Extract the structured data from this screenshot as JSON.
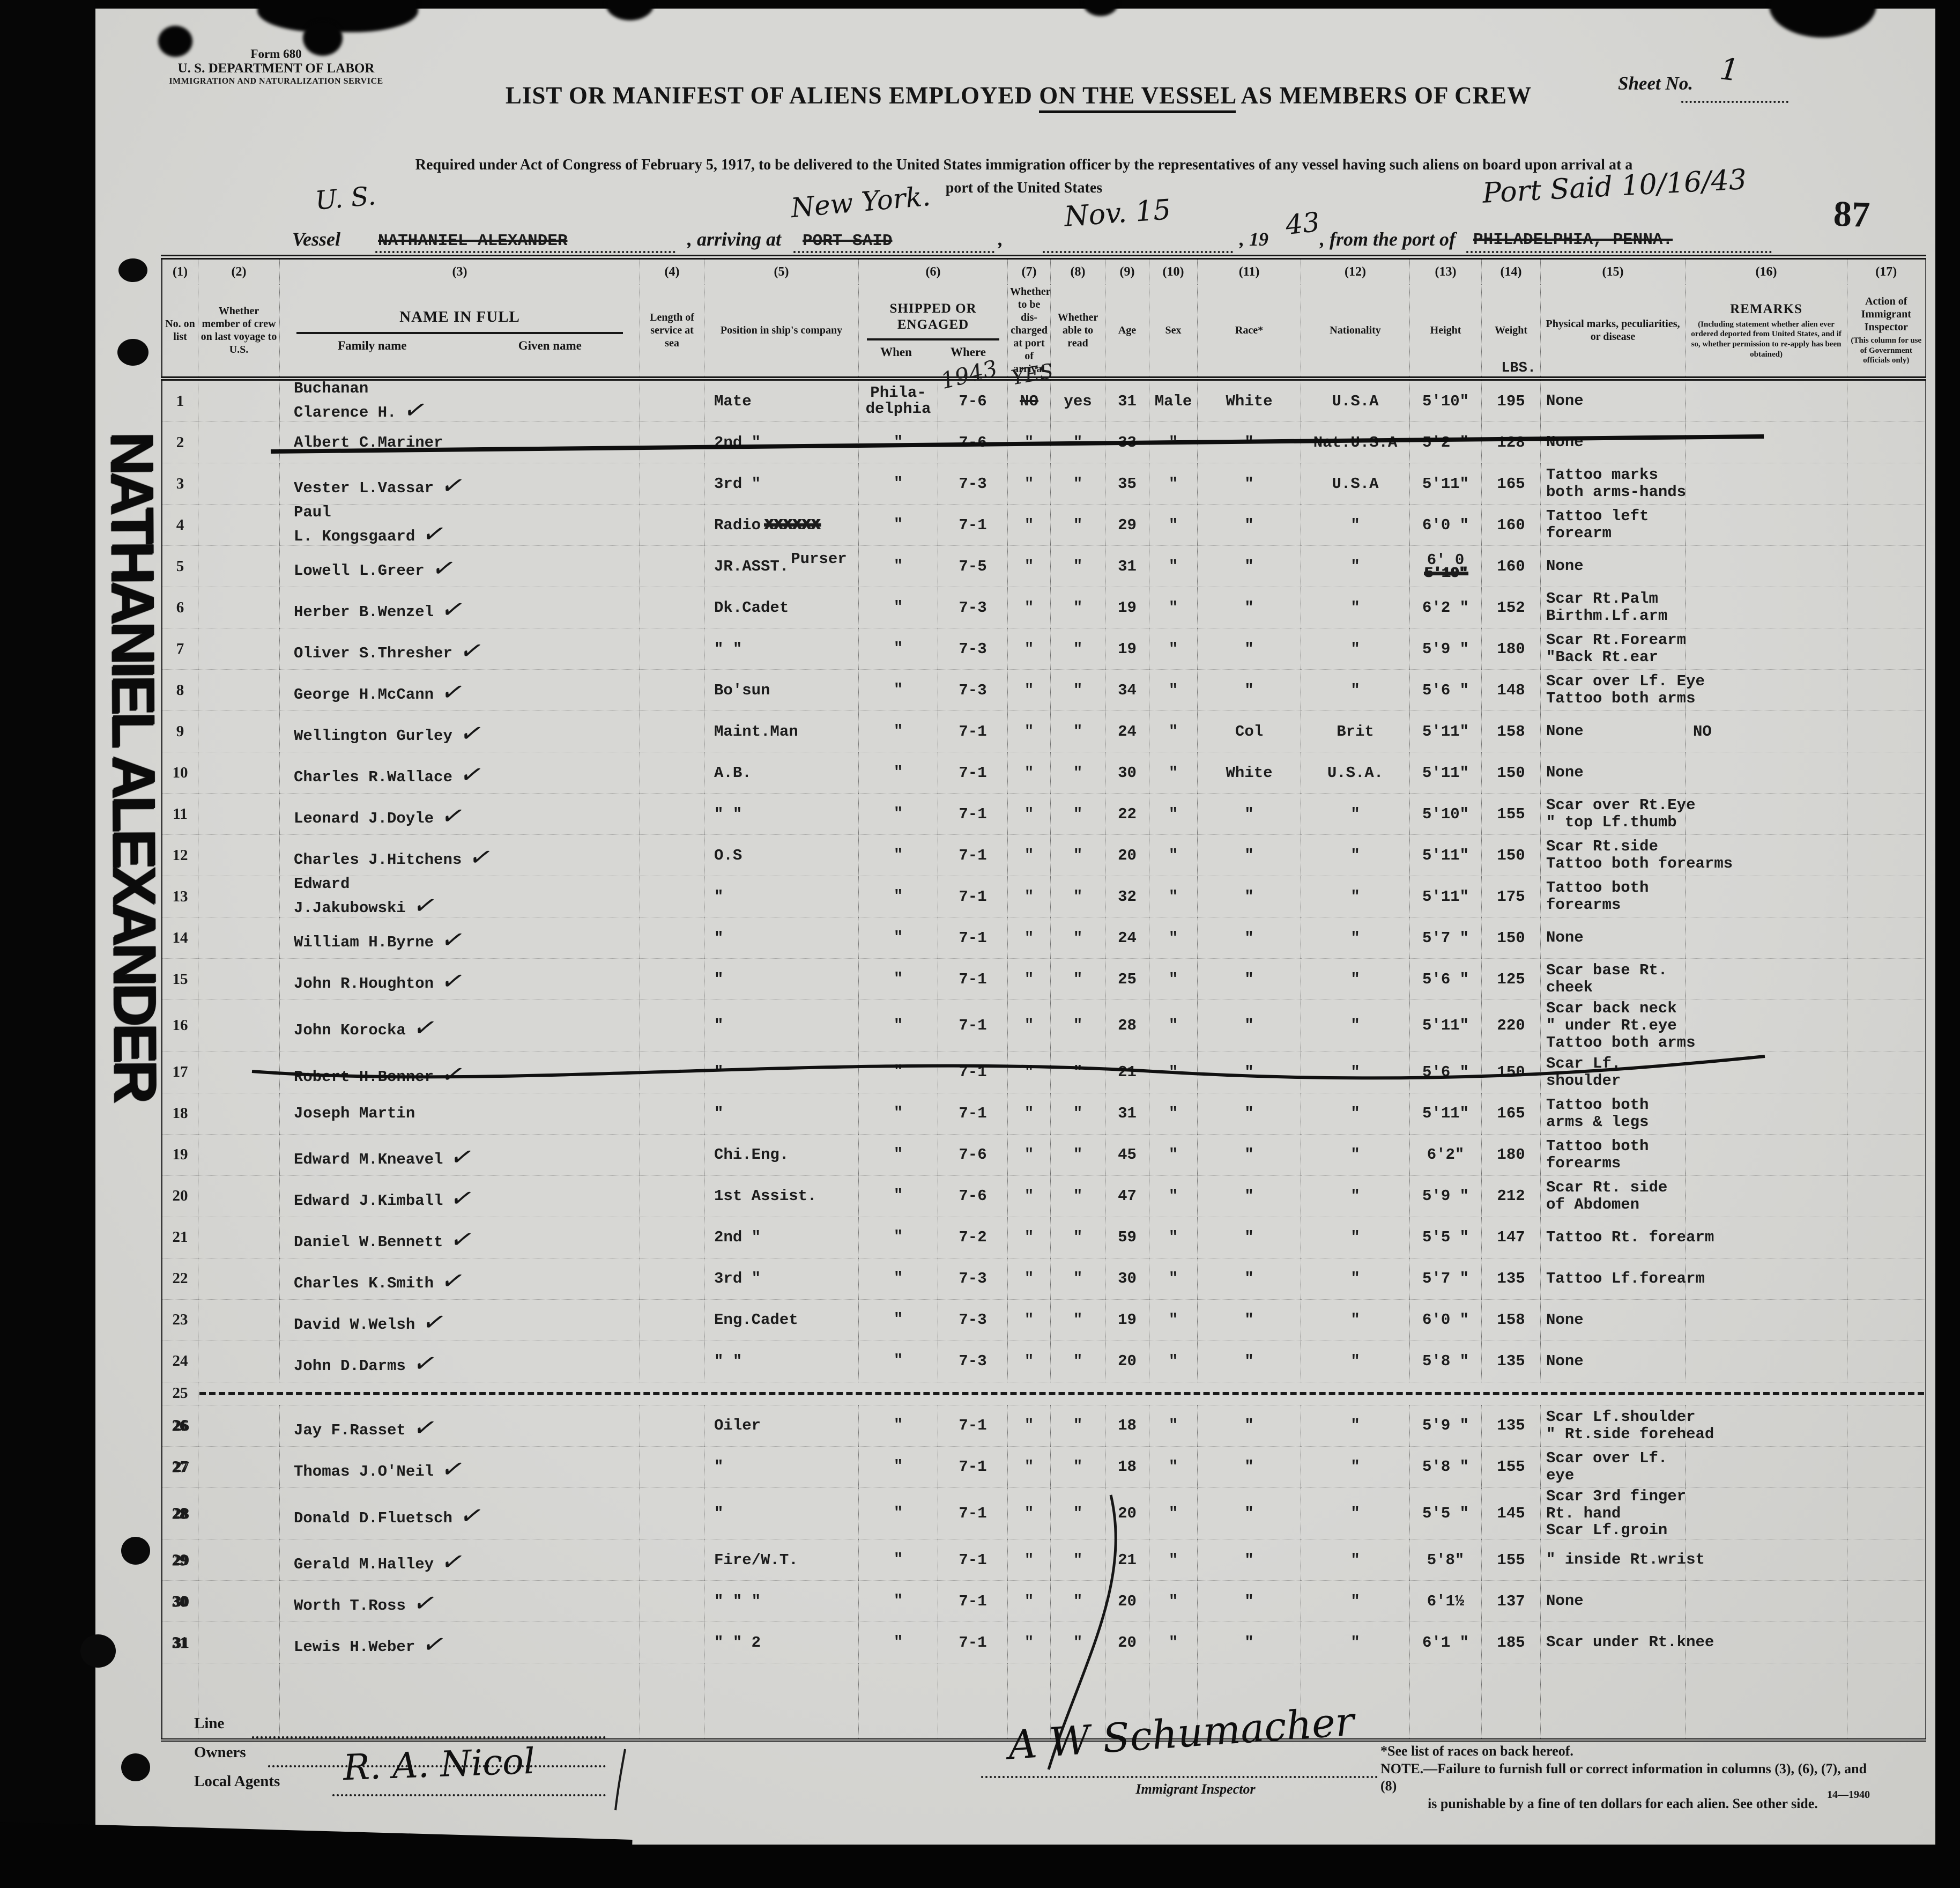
{
  "header": {
    "form_no": "Form 680",
    "department": "U. S. DEPARTMENT OF LABOR",
    "service": "IMMIGRATION AND NATURALIZATION SERVICE",
    "sheet_label": "Sheet No.",
    "sheet_value": "1",
    "title_part1": "LIST OR MANIFEST OF ALIENS EMPLOYED ",
    "title_part2": "ON THE VESSEL",
    "title_part3": " AS MEMBERS OF CREW",
    "required_line1": "Required under Act of Congress of February 5, 1917, to be delivered to the United States immigration officer by the representatives of any vessel having such aliens on board upon arrival at a",
    "required_line2": "port of the United States",
    "stamp_number": "87"
  },
  "vessel_line": {
    "vessel_label": "Vessel",
    "vessel_hand": "U. S.",
    "vessel_name_typed": "NATHANIEL ALEXANDER",
    "arriving_label": ", arriving at",
    "arriving_typed_struck": "PORT SAID",
    "arriving_hand": "New York.",
    "date_hand": "Nov. 15",
    "year_label": ", 19",
    "year_hand": "43",
    "from_label": ", from the port of",
    "from_typed_struck": "PHILADELPHIA, PENNA.",
    "port_stamp_hand": "Port Said   10/16/43"
  },
  "margin_note": "NATHANIEL ALEXANDER",
  "icons": {
    "check": "✓"
  },
  "table": {
    "cols": {
      "n1": "(1)",
      "l1": "No. on list",
      "n2": "(2)",
      "l2": "Whether member of crew on last voyage to U.S.",
      "n3": "(3)",
      "l3": "NAME IN FULL",
      "l3a": "Family name",
      "l3b": "Given name",
      "n4": "(4)",
      "l4": "Length of service at sea",
      "n5": "(5)",
      "l5": "Position in ship's company",
      "n6": "(6)",
      "l6": "SHIPPED OR ENGAGED",
      "l6a": "When",
      "l6b": "Where",
      "n7": "(7)",
      "l7": "Whether to be dis- charged at port of arrival",
      "n8": "(8)",
      "l8": "Whether able to read",
      "n9": "(9)",
      "l9": "Age",
      "n10": "(10)",
      "l10": "Sex",
      "n11": "(11)",
      "l11": "Race*",
      "n12": "(12)",
      "l12": "Nationality",
      "n13": "(13)",
      "l13": "Height",
      "n14": "(14)",
      "l14": "Weight",
      "n15": "(15)",
      "l15": "Physical marks, peculiarities, or disease",
      "n16": "(16)",
      "l16": "REMARKS",
      "l16b": "(Including statement whether alien ever ordered deported from United States, and if so, whether permission to re-apply has been obtained)",
      "n17": "(17)",
      "l17": "Action of Immigrant Inspector",
      "l17b": "(This column for use of Government officials only)"
    },
    "rows": [
      {
        "no": "1",
        "name_top": "Buchanan",
        "name": "Clarence H.",
        "check": true,
        "pos": "Mate",
        "when": "Phila-",
        "when2": "delphia",
        "where": "7-6",
        "where_hand": "1943",
        "disch": "NO",
        "disch_struck": true,
        "disch_hand": "YES",
        "read": "yes",
        "age": "31",
        "sex": "Male",
        "race": "White",
        "nat": "U.S.A",
        "height": "5'10\"",
        "weight": "195",
        "weight_hdr": "LBS.",
        "marks": [
          "None"
        ]
      },
      {
        "no": "2",
        "name": "Albert C.Mariner",
        "struck_line": true,
        "pos": "2nd  \"",
        "when": "\"",
        "where": "7-6",
        "disch": "\"",
        "read": "\"",
        "age": "33",
        "sex": "\"",
        "race": "\"",
        "nat": "Nat.U.S.A",
        "height": "5'2 \"",
        "weight": "128",
        "marks": [
          "None"
        ]
      },
      {
        "no": "3",
        "name": "Vester L.Vassar",
        "check": true,
        "pos": "3rd  \"",
        "when": "\"",
        "where": "7-3",
        "disch": "\"",
        "read": "\"",
        "age": "35",
        "sex": "\"",
        "race": "\"",
        "nat": "U.S.A",
        "height": "5'11\"",
        "weight": "165",
        "marks": [
          "Tattoo marks",
          "both arms-hands"
        ]
      },
      {
        "no": "4",
        "name_top": "Paul",
        "name": "L. Kongsgaard",
        "check": true,
        "pos": "Radio",
        "pos_struck": "XXXXXX",
        "when": "\"",
        "where": "7-1",
        "disch": "\"",
        "read": "\"",
        "age": "29",
        "sex": "\"",
        "race": "\"",
        "nat": "\"",
        "height": "6'0 \"",
        "weight": "160",
        "marks": [
          "Tattoo left",
          "forearm"
        ]
      },
      {
        "no": "5",
        "name": "Lowell L.Greer",
        "check": true,
        "pos": "JR.ASST.",
        "pos_sup": "Purser",
        "when": "\"",
        "where": "7-5",
        "disch": "\"",
        "read": "\"",
        "age": "31",
        "sex": "\"",
        "race": "\"",
        "nat": "\"",
        "height": "6' 0",
        "height_struck": "5'10\"",
        "weight": "160",
        "marks": [
          "None"
        ]
      },
      {
        "no": "6",
        "name": "Herber B.Wenzel",
        "check": true,
        "pos": "Dk.Cadet",
        "when": "\"",
        "where": "7-3",
        "disch": "\"",
        "read": "\"",
        "age": "19",
        "sex": "\"",
        "race": "\"",
        "nat": "\"",
        "height": "6'2 \"",
        "weight": "152",
        "marks": [
          "Scar Rt.Palm",
          "Birthm.Lf.arm"
        ]
      },
      {
        "no": "7",
        "name": "Oliver S.Thresher",
        "check": true,
        "pos": "\"   \"",
        "when": "\"",
        "where": "7-3",
        "disch": "\"",
        "read": "\"",
        "age": "19",
        "sex": "\"",
        "race": "\"",
        "nat": "\"",
        "height": "5'9 \"",
        "weight": "180",
        "marks": [
          "Scar Rt.Forearm",
          "\"Back Rt.ear"
        ]
      },
      {
        "no": "8",
        "name": "George H.McCann",
        "check": true,
        "pos": "Bo'sun",
        "when": "\"",
        "where": "7-3",
        "disch": "\"",
        "read": "\"",
        "age": "34",
        "sex": "\"",
        "race": "\"",
        "nat": "\"",
        "height": "5'6 \"",
        "weight": "148",
        "marks": [
          "Scar over Lf. Eye",
          "Tattoo both arms"
        ]
      },
      {
        "no": "9",
        "name": "Wellington Gurley",
        "check": true,
        "pos": "Maint.Man",
        "when": "\"",
        "where": "7-1",
        "disch": "\"",
        "read": "\"",
        "age": "24",
        "sex": "\"",
        "race": "Col",
        "nat": "Brit",
        "height": "5'11\"",
        "weight": "158",
        "marks": [
          "None"
        ],
        "rem16": "NO"
      },
      {
        "no": "10",
        "name": "Charles R.Wallace",
        "check": true,
        "pos": "A.B.",
        "when": "\"",
        "where": "7-1",
        "disch": "\"",
        "read": "\"",
        "age": "30",
        "sex": "\"",
        "race": "White",
        "nat": "U.S.A.",
        "height": "5'11\"",
        "weight": "150",
        "marks": [
          "None"
        ]
      },
      {
        "no": "11",
        "name": "Leonard J.Doyle",
        "check": true,
        "pos": "\" \"",
        "when": "\"",
        "where": "7-1",
        "disch": "\"",
        "read": "\"",
        "age": "22",
        "sex": "\"",
        "race": "\"",
        "nat": "\"",
        "height": "5'10\"",
        "weight": "155",
        "marks": [
          "Scar over Rt.Eye",
          "\" top Lf.thumb"
        ]
      },
      {
        "no": "12",
        "name": "Charles J.Hitchens",
        "check": true,
        "pos": "O.S",
        "when": "\"",
        "where": "7-1",
        "disch": "\"",
        "read": "\"",
        "age": "20",
        "sex": "\"",
        "race": "\"",
        "nat": "\"",
        "height": "5'11\"",
        "weight": "150",
        "marks": [
          "Scar Rt.side",
          "Tattoo both forearms"
        ]
      },
      {
        "no": "13",
        "name_top": "Edward",
        "name": "J.Jakubowski",
        "check": true,
        "pos": "\"",
        "when": "\"",
        "where": "7-1",
        "disch": "\"",
        "read": "\"",
        "age": "32",
        "sex": "\"",
        "race": "\"",
        "nat": "\"",
        "height": "5'11\"",
        "weight": "175",
        "marks": [
          "Tattoo both",
          "forearms"
        ]
      },
      {
        "no": "14",
        "name": "William H.Byrne",
        "check": true,
        "pos": "\"",
        "when": "\"",
        "where": "7-1",
        "disch": "\"",
        "read": "\"",
        "age": "24",
        "sex": "\"",
        "race": "\"",
        "nat": "\"",
        "height": "5'7 \"",
        "weight": "150",
        "marks": [
          "None"
        ]
      },
      {
        "no": "15",
        "name": "John R.Houghton",
        "check": true,
        "pos": "\"",
        "when": "\"",
        "where": "7-1",
        "disch": "\"",
        "read": "\"",
        "age": "25",
        "sex": "\"",
        "race": "\"",
        "nat": "\"",
        "height": "5'6 \"",
        "weight": "125",
        "marks": [
          "Scar base Rt.",
          "cheek"
        ]
      },
      {
        "no": "16",
        "name": "John Korocka",
        "check": true,
        "pos": "\"",
        "when": "\"",
        "where": "7-1",
        "disch": "\"",
        "read": "\"",
        "age": "28",
        "sex": "\"",
        "race": "\"",
        "nat": "\"",
        "height": "5'11\"",
        "weight": "220",
        "marks": [
          "Scar back neck",
          "\" under Rt.eye",
          "Tattoo both arms"
        ]
      },
      {
        "no": "17",
        "name": "Robert H.Bonner",
        "check": true,
        "pos": "\"",
        "when": "\"",
        "where": "7-1",
        "disch": "\"",
        "read": "\"",
        "age": "21",
        "sex": "\"",
        "race": "\"",
        "nat": "\"",
        "height": "5'6  \"",
        "weight": "150",
        "marks": [
          "Scar Lf.",
          "shoulder"
        ]
      },
      {
        "no": "18",
        "name": "Joseph Martin",
        "struck_line": true,
        "pos": "\"",
        "when": "\"",
        "where": "7-1",
        "disch": "\"",
        "read": "\"",
        "age": "31",
        "sex": "\"",
        "race": "\"",
        "nat": "\"",
        "height": "5'11\"",
        "weight": "165",
        "marks": [
          "Tattoo both",
          "arms & legs"
        ]
      },
      {
        "no": "19",
        "name": "Edward M.Kneavel",
        "check": true,
        "pos": "Chi.Eng.",
        "when": "\"",
        "where": "7-6",
        "disch": "\"",
        "read": "\"",
        "age": "45",
        "sex": "\"",
        "race": "\"",
        "nat": "\"",
        "height": "6'2\"",
        "weight": "180",
        "marks": [
          "Tattoo both",
          "forearms"
        ]
      },
      {
        "no": "20",
        "name": "Edward J.Kimball",
        "check": true,
        "pos": "1st Assist.",
        "when": "\"",
        "where": "7-6",
        "disch": "\"",
        "read": "\"",
        "age": "47",
        "sex": "\"",
        "race": "\"",
        "nat": "\"",
        "height": "5'9 \"",
        "weight": "212",
        "marks": [
          "Scar Rt. side",
          "of Abdomen"
        ]
      },
      {
        "no": "21",
        "name": "Daniel W.Bennett",
        "check": true,
        "pos": "2nd  \"",
        "when": "\"",
        "where": "7-2",
        "disch": "\"",
        "read": "\"",
        "age": "59",
        "sex": "\"",
        "race": "\"",
        "nat": "\"",
        "height": "5'5 \"",
        "weight": "147",
        "marks": [
          "Tattoo Rt. forearm"
        ]
      },
      {
        "no": "22",
        "name": "Charles K.Smith",
        "check": true,
        "pos": "3rd  \"",
        "when": "\"",
        "where": "7-3",
        "disch": "\"",
        "read": "\"",
        "age": "30",
        "sex": "\"",
        "race": "\"",
        "nat": "\"",
        "height": "5'7 \"",
        "weight": "135",
        "marks": [
          "Tattoo Lf.forearm"
        ]
      },
      {
        "no": "23",
        "name": "David W.Welsh",
        "check": true,
        "pos": "Eng.Cadet",
        "when": "\"",
        "where": "7-3",
        "disch": "\"",
        "read": "\"",
        "age": "19",
        "sex": "\"",
        "race": "\"",
        "nat": "\"",
        "height": "6'0 \"",
        "weight": "158",
        "marks": [
          "None"
        ]
      },
      {
        "no": "24",
        "name": "John D.Darms",
        "check": true,
        "pos": "\"  \"",
        "when": "\"",
        "where": "7-3",
        "disch": "\"",
        "read": "\"",
        "age": "20",
        "sex": "\"",
        "race": "\"",
        "nat": "\"",
        "height": "5'8 \"",
        "weight": "135",
        "marks": [
          "None"
        ]
      },
      {
        "no": "25",
        "separator": true
      },
      {
        "no": "26",
        "smudge": true,
        "name": "Jay F.Rasset",
        "check": true,
        "pos": "Oiler",
        "when": "\"",
        "where": "7-1",
        "disch": "\"",
        "read": "\"",
        "age": "18",
        "sex": "\"",
        "race": "\"",
        "nat": "\"",
        "height": "5'9 \"",
        "weight": "135",
        "marks": [
          "Scar Lf.shoulder",
          "\" Rt.side forehead"
        ]
      },
      {
        "no": "27",
        "smudge": true,
        "name": "Thomas J.O'Neil",
        "check": true,
        "pos": "\"",
        "when": "\"",
        "where": "7-1",
        "disch": "\"",
        "read": "\"",
        "age": "18",
        "sex": "\"",
        "race": "\"",
        "nat": "\"",
        "height": "5'8 \"",
        "weight": "155",
        "marks": [
          "Scar over Lf.",
          "eye"
        ]
      },
      {
        "no": "28",
        "smudge": true,
        "name": "Donald D.Fluetsch",
        "check": true,
        "pos": "\"",
        "when": "\"",
        "where": "7-1",
        "disch": "\"",
        "read": "\"",
        "age": "20",
        "sex": "\"",
        "race": "\"",
        "nat": "\"",
        "height": "5'5 \"",
        "weight": "145",
        "marks": [
          "Scar 3rd finger",
          "Rt. hand",
          "Scar Lf.groin"
        ]
      },
      {
        "no": "29",
        "smudge": true,
        "name": "Gerald M.Halley",
        "check": true,
        "pos": "Fire/W.T.",
        "when": "\"",
        "where": "7-1",
        "disch": "\"",
        "read": "\"",
        "age": "21",
        "sex": "\"",
        "race": "\"",
        "nat": "\"",
        "height": "5'8\"",
        "weight": "155",
        "marks": [
          "\" inside Rt.wrist"
        ]
      },
      {
        "no": "30",
        "smudge": true,
        "name": "Worth T.Ross",
        "check": true,
        "pos": "\"  \"  \"",
        "when": "\"",
        "where": "7-1",
        "disch": "\"",
        "read": "\"",
        "age": "20",
        "sex": "\"",
        "race": "\"",
        "nat": "\"",
        "height": "6'1½",
        "weight": "137",
        "marks": [
          "None"
        ]
      },
      {
        "no": "31",
        "smudge": true,
        "name": "Lewis H.Weber",
        "check": true,
        "pos": "\"  \"  2",
        "when": "\"",
        "where": "7-1",
        "disch": "\"",
        "read": "\"",
        "age": "20",
        "sex": "\"",
        "race": "\"",
        "nat": "\"",
        "height": "6'1 \"",
        "weight": "185",
        "marks": [
          "Scar under Rt.knee"
        ]
      }
    ]
  },
  "footer": {
    "line_label": "Line",
    "owners_label": "Owners",
    "local_agents_label": "Local Agents",
    "owners_signature": "R. A. Nicol",
    "inspector_signature": "A W Schumacher",
    "inspector_label": "Immigrant Inspector",
    "note_races": "*See list of races on back hereof.",
    "note_line1": "NOTE.—Failure to furnish full or correct information in columns (3), (6), (7), and (8)",
    "note_line2": "is punishable by a fine of ten dollars for each alien.   See other side.",
    "form_code": "14—1940"
  }
}
